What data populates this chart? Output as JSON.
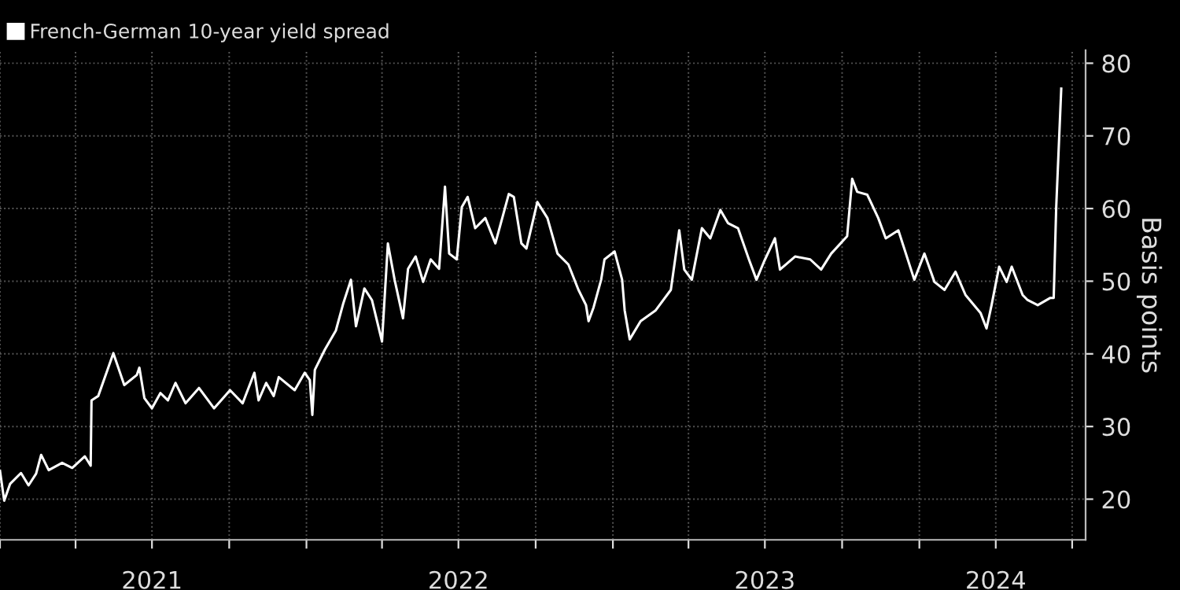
{
  "chart_data": {
    "type": "line",
    "ylabel": "Basis points",
    "x": [
      "2021-01-01",
      "2021-01-06",
      "2021-01-13",
      "2021-01-26",
      "2021-02-04",
      "2021-02-13",
      "2021-02-19",
      "2021-02-28",
      "2021-03-16",
      "2021-03-28",
      "2021-04-12",
      "2021-04-19",
      "2021-04-20",
      "2021-04-28",
      "2021-05-10",
      "2021-05-16",
      "2021-05-29",
      "2021-06-13",
      "2021-06-16",
      "2021-06-22",
      "2021-07-01",
      "2021-07-11",
      "2021-07-20",
      "2021-07-29",
      "2021-08-10",
      "2021-08-26",
      "2021-09-13",
      "2021-10-02",
      "2021-10-17",
      "2021-10-31",
      "2021-11-05",
      "2021-11-14",
      "2021-11-23",
      "2021-11-29",
      "2021-12-18",
      "2021-12-30",
      "2022-01-05",
      "2022-01-08",
      "2022-01-11",
      "2022-01-23",
      "2022-02-05",
      "2022-02-14",
      "2022-02-23",
      "2022-03-01",
      "2022-03-11",
      "2022-03-20",
      "2022-04-01",
      "2022-04-08",
      "2022-04-16",
      "2022-04-26",
      "2022-05-02",
      "2022-05-11",
      "2022-05-20",
      "2022-05-29",
      "2022-06-08",
      "2022-06-15",
      "2022-06-20",
      "2022-06-29",
      "2022-07-05",
      "2022-07-12",
      "2022-07-21",
      "2022-08-02",
      "2022-08-14",
      "2022-08-30",
      "2022-09-05",
      "2022-09-14",
      "2022-09-20",
      "2022-10-03",
      "2022-10-15",
      "2022-10-27",
      "2022-11-09",
      "2022-11-21",
      "2022-11-30",
      "2022-12-03",
      "2022-12-09",
      "2022-12-18",
      "2022-12-22",
      "2023-01-03",
      "2023-01-12",
      "2023-01-15",
      "2023-01-21",
      "2023-02-03",
      "2023-02-21",
      "2023-03-11",
      "2023-03-21",
      "2023-03-27",
      "2023-04-05",
      "2023-04-17",
      "2023-04-27",
      "2023-05-09",
      "2023-05-18",
      "2023-05-30",
      "2023-06-12",
      "2023-06-21",
      "2023-06-30",
      "2023-07-13",
      "2023-07-19",
      "2023-08-06",
      "2023-08-24",
      "2023-09-06",
      "2023-09-18",
      "2023-10-07",
      "2023-10-13",
      "2023-10-19",
      "2023-10-31",
      "2023-11-13",
      "2023-11-22",
      "2023-12-07",
      "2023-12-26",
      "2024-01-07",
      "2024-01-19",
      "2024-01-31",
      "2024-02-13",
      "2024-02-25",
      "2024-03-14",
      "2024-03-21",
      "2024-03-27",
      "2024-04-05",
      "2024-04-14",
      "2024-04-20",
      "2024-05-03",
      "2024-05-09",
      "2024-05-21",
      "2024-06-05",
      "2024-06-09",
      "2024-06-12",
      "2024-06-18"
    ],
    "series": [
      {
        "name": "French-German 10-year yield spread",
        "color": "#ffffff",
        "values": [
          23.9,
          19.8,
          22.1,
          23.6,
          21.9,
          23.5,
          26.1,
          24,
          25,
          24.3,
          25.9,
          24.6,
          33.6,
          34.2,
          38.1,
          40.1,
          35.7,
          37.1,
          38.1,
          33.9,
          32.5,
          34.6,
          33.6,
          36,
          33.2,
          35.3,
          32.5,
          35,
          33.2,
          37.4,
          33.6,
          36,
          34.2,
          36.8,
          35,
          37.4,
          36.4,
          31.6,
          37.8,
          40.6,
          43.2,
          47,
          50.2,
          43.8,
          49,
          47.4,
          41.7,
          55.2,
          50.2,
          44.9,
          51.7,
          53.4,
          49.9,
          53,
          51.7,
          63,
          53.8,
          53,
          60.2,
          61.6,
          57.3,
          58.7,
          55.2,
          62,
          61.6,
          55.2,
          54.5,
          60.9,
          58.7,
          53.8,
          52.3,
          48.8,
          46.7,
          44.5,
          46.4,
          50.2,
          53,
          54.1,
          50.2,
          46,
          42,
          44.5,
          46,
          48.8,
          57,
          51.6,
          50.2,
          57.3,
          55.9,
          59.8,
          58,
          57.3,
          53,
          50.2,
          52.7,
          55.9,
          51.6,
          53.4,
          53,
          51.6,
          53.8,
          56.2,
          64.1,
          62.3,
          61.9,
          58.7,
          55.9,
          57,
          50.2,
          53.8,
          49.9,
          48.8,
          51.3,
          48.1,
          45.6,
          43.5,
          46.7,
          52,
          49.9,
          52,
          48.1,
          47.4,
          46.7,
          47.7,
          47.7,
          60.2,
          76.5
        ]
      }
    ],
    "xlim": [
      "2021-01-01",
      "2024-07-17"
    ],
    "xticks": [
      {
        "value": "2021-01-01",
        "label": null
      },
      {
        "value": "2021-04-01",
        "label": null
      },
      {
        "value": "2021-07-01",
        "label": "2021"
      },
      {
        "value": "2021-10-01",
        "label": null
      },
      {
        "value": "2022-01-01",
        "label": null
      },
      {
        "value": "2022-04-01",
        "label": null
      },
      {
        "value": "2022-07-01",
        "label": "2022"
      },
      {
        "value": "2022-10-01",
        "label": null
      },
      {
        "value": "2023-01-01",
        "label": null
      },
      {
        "value": "2023-04-01",
        "label": null
      },
      {
        "value": "2023-07-01",
        "label": "2023"
      },
      {
        "value": "2023-10-01",
        "label": null
      },
      {
        "value": "2024-01-01",
        "label": null
      },
      {
        "value": "2024-04-01",
        "label": "2024"
      },
      {
        "value": "2024-07-01",
        "label": null
      }
    ],
    "ylim": [
      14.4,
      81.8
    ],
    "yticks": [
      20,
      30,
      40,
      50,
      60,
      70,
      80
    ],
    "grid": true,
    "legend": "top left",
    "marker": "none",
    "line_style": "solid"
  }
}
